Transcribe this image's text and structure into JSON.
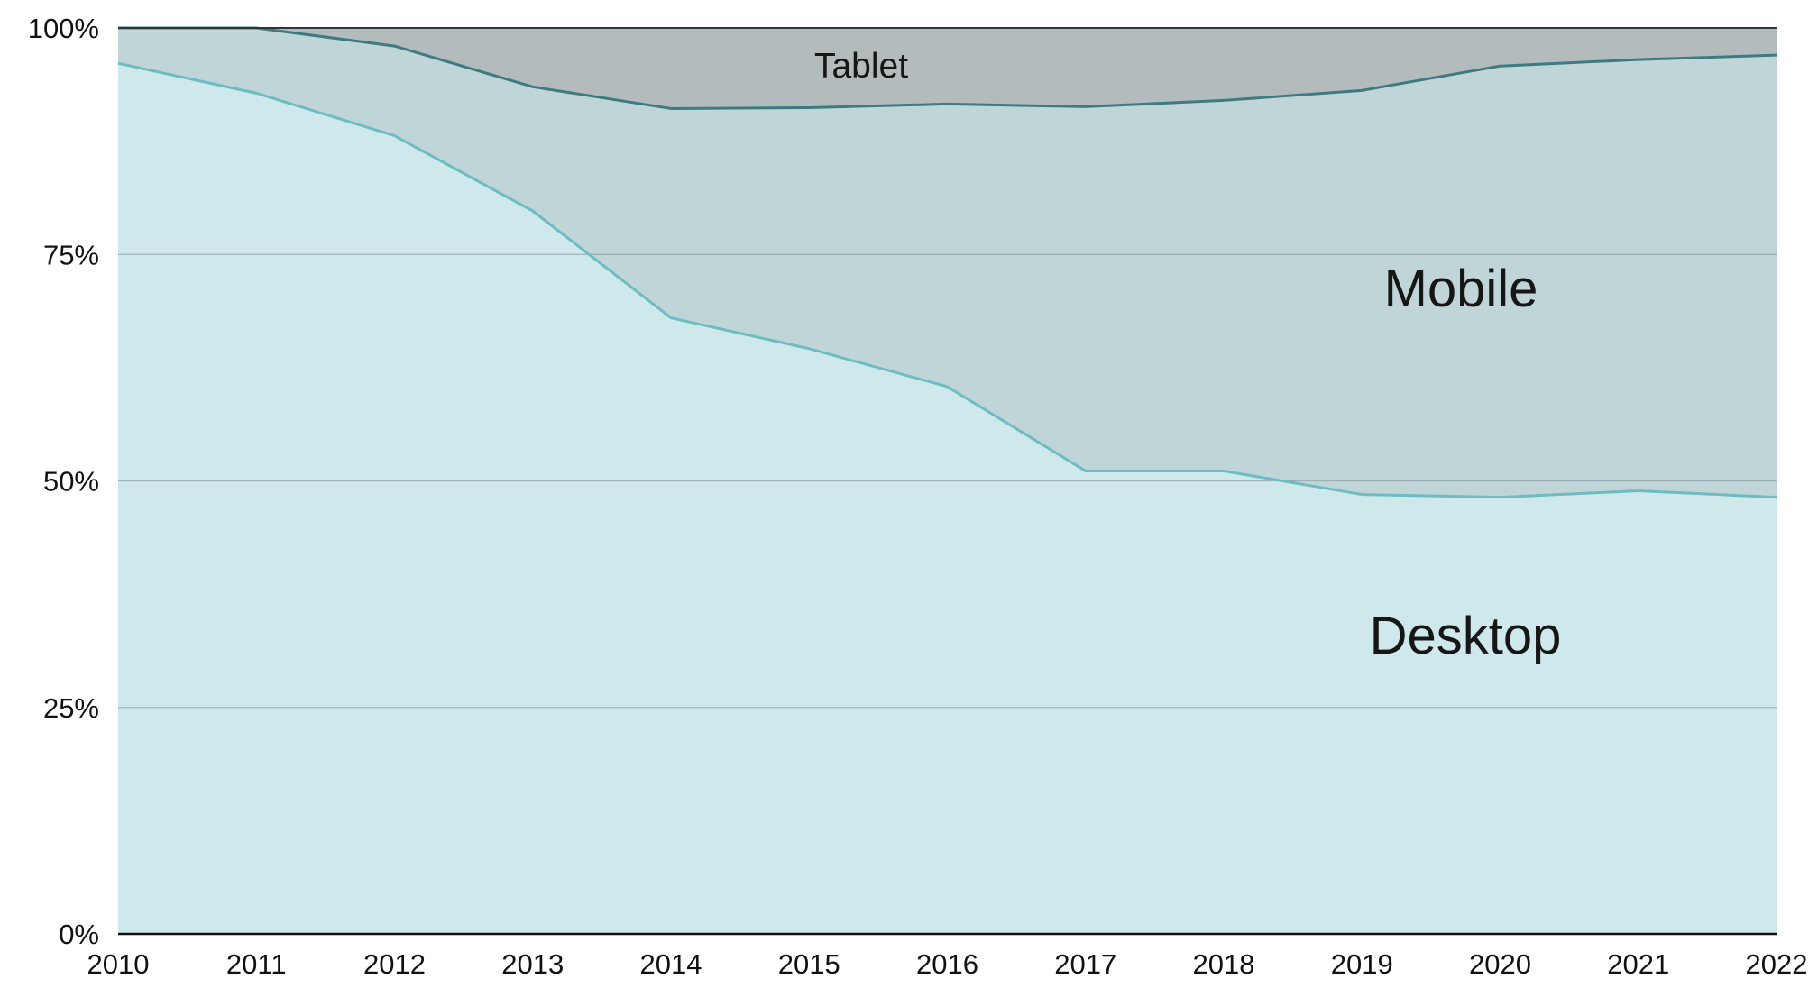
{
  "chart_data": {
    "type": "area",
    "stacked": true,
    "percent_stacked": true,
    "grid": true,
    "legend": "none (series labelled inside areas)",
    "x": [
      "2010",
      "2011",
      "2012",
      "2013",
      "2014",
      "2015",
      "2016",
      "2017",
      "2018",
      "2019",
      "2020",
      "2021",
      "2022"
    ],
    "ylim": [
      0,
      100
    ],
    "yticks": [
      "0%",
      "25%",
      "50%",
      "75%",
      "100%"
    ],
    "series": [
      {
        "name": "Desktop",
        "color": "#cfe8eb",
        "line_color": "#6cbcc2",
        "values": [
          96.1,
          92.8,
          88.1,
          79.8,
          68.0,
          64.6,
          60.4,
          51.1,
          51.1,
          48.5,
          48.2,
          48.9,
          48.2
        ]
      },
      {
        "name": "Mobile",
        "color": "#c0d5d8",
        "line_color": "#3e7b80",
        "values": [
          3.9,
          7.2,
          9.9,
          13.7,
          23.1,
          26.6,
          31.2,
          40.2,
          40.9,
          44.6,
          47.6,
          47.6,
          48.8
        ]
      },
      {
        "name": "Tablet",
        "color": "#b3bbbd",
        "values": [
          0.0,
          0.0,
          2.0,
          6.5,
          8.9,
          8.8,
          8.4,
          8.7,
          8.0,
          6.9,
          4.2,
          3.5,
          3.0
        ]
      }
    ]
  }
}
